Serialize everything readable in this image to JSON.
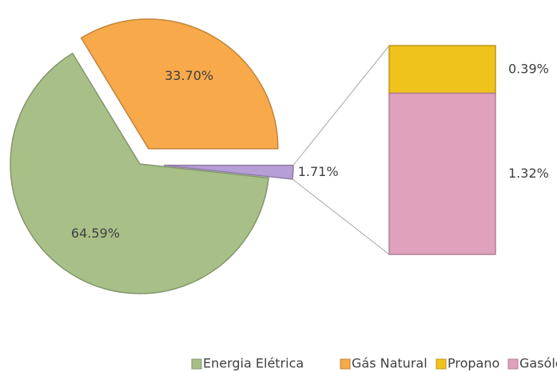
{
  "chart_data": {
    "type": "pie-of-bar",
    "categories": [
      "Energia Elétrica",
      "Gás Natural",
      null
    ],
    "values": [
      64.59,
      33.7,
      1.71
    ],
    "value_labels": [
      "64.59%",
      "33.70%",
      "1.71%"
    ],
    "colors": [
      "#a8c088",
      "#f8a94a",
      "#b69ed6"
    ],
    "bar": {
      "categories": [
        "Propano",
        "Gasóleo"
      ],
      "values": [
        0.39,
        1.32
      ],
      "value_labels": [
        "0.39%",
        "1.32%"
      ],
      "colors": [
        "#f0c21c",
        "#e0a1bc"
      ]
    },
    "legend": "bottom"
  }
}
